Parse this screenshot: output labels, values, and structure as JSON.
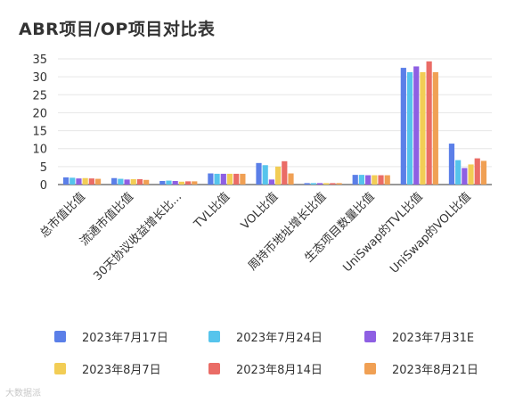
{
  "chart_data": {
    "type": "bar",
    "title": "ABR项目/OP项目对比表",
    "categories": [
      "总市值比值",
      "流通市值比值",
      "30天协议收益增长比...",
      "TVL比值",
      "VOL比值",
      "周持币地址增长比值",
      "生态项目数量比值",
      "UniSwap的TVL比值",
      "UniSwap的VOL比值"
    ],
    "ylim": [
      0,
      35
    ],
    "yticks": [
      0,
      5,
      10,
      15,
      20,
      25,
      30,
      35
    ],
    "grid": true,
    "legend_position": "bottom",
    "series": [
      {
        "name": "2023年7月17日",
        "color": "#5b7fe8",
        "values": [
          2.0,
          1.8,
          1.0,
          3.1,
          6.0,
          0.4,
          2.7,
          32.5,
          11.4
        ]
      },
      {
        "name": "2023年7月24日",
        "color": "#56c4ec",
        "values": [
          1.9,
          1.6,
          1.1,
          3.0,
          5.4,
          0.4,
          2.7,
          31.3,
          6.8
        ]
      },
      {
        "name": "2023年7月31E",
        "color": "#8e5fe3",
        "values": [
          1.7,
          1.4,
          1.0,
          3.0,
          1.4,
          0.4,
          2.6,
          32.9,
          4.6
        ]
      },
      {
        "name": "2023年8月7日",
        "color": "#f2cd55",
        "values": [
          1.8,
          1.5,
          0.8,
          3.0,
          5.0,
          0.4,
          2.6,
          31.3,
          5.6
        ]
      },
      {
        "name": "2023年8月14日",
        "color": "#ea6c66",
        "values": [
          1.7,
          1.5,
          0.9,
          3.0,
          6.5,
          0.4,
          2.6,
          34.3,
          7.3
        ]
      },
      {
        "name": "2023年8月21日",
        "color": "#f0a054",
        "values": [
          1.6,
          1.3,
          0.9,
          3.0,
          3.1,
          0.4,
          2.6,
          31.3,
          6.6
        ]
      }
    ]
  },
  "watermark": "大数据派"
}
